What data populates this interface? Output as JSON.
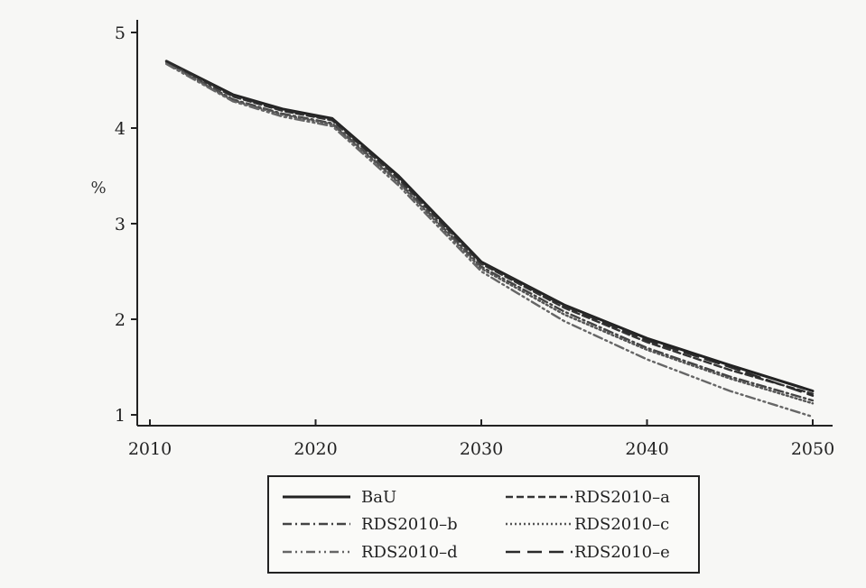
{
  "chart_data": {
    "type": "line",
    "title": "",
    "xlabel": "",
    "ylabel": "%",
    "xlim": [
      2010,
      2050
    ],
    "ylim": [
      1,
      5
    ],
    "x_ticks": [
      "2010",
      "2020",
      "2030",
      "2040",
      "2050"
    ],
    "y_ticks": [
      "1",
      "2",
      "3",
      "4",
      "5"
    ],
    "grid": false,
    "legend_position": "bottom",
    "x": [
      2011,
      2015,
      2018,
      2021,
      2025,
      2030,
      2035,
      2040,
      2045,
      2050
    ],
    "series": [
      {
        "name": "BaU",
        "style": "solid",
        "color": "#222222",
        "values": [
          4.7,
          4.35,
          4.2,
          4.1,
          3.5,
          2.6,
          2.15,
          1.8,
          1.52,
          1.25
        ]
      },
      {
        "name": "RDS2010–a",
        "style": "dashed",
        "color": "#333333",
        "values": [
          4.7,
          4.33,
          4.18,
          4.08,
          3.47,
          2.58,
          2.12,
          1.76,
          1.47,
          1.22
        ]
      },
      {
        "name": "RDS2010–b",
        "style": "dashdot",
        "color": "#444444",
        "values": [
          4.69,
          4.3,
          4.15,
          4.05,
          3.44,
          2.55,
          2.08,
          1.7,
          1.4,
          1.15
        ]
      },
      {
        "name": "RDS2010–c",
        "style": "dotted",
        "color": "#555555",
        "values": [
          4.68,
          4.29,
          4.14,
          4.04,
          3.43,
          2.53,
          2.05,
          1.68,
          1.38,
          1.12
        ]
      },
      {
        "name": "RDS2010–d",
        "style": "dashdotdot",
        "color": "#666666",
        "values": [
          4.67,
          4.28,
          4.12,
          4.02,
          3.4,
          2.5,
          1.98,
          1.58,
          1.25,
          0.98
        ]
      },
      {
        "name": "RDS2010–e",
        "style": "longdash",
        "color": "#2a2a2a",
        "values": [
          4.7,
          4.34,
          4.19,
          4.09,
          3.49,
          2.59,
          2.14,
          1.78,
          1.5,
          1.2
        ]
      }
    ]
  }
}
